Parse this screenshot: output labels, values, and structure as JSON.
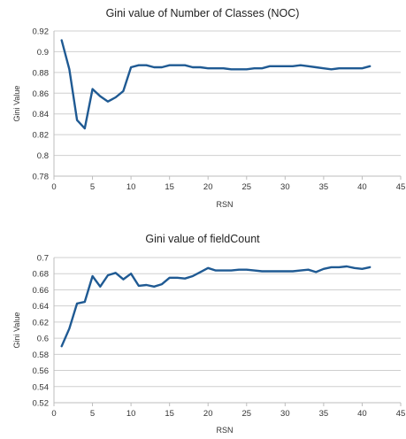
{
  "chart_data": [
    {
      "type": "line",
      "title": "Gini value of Number of Classes (NOC)",
      "xlabel": "RSN",
      "ylabel": "Gini Value",
      "xlim": [
        0,
        45
      ],
      "ylim": [
        0.78,
        0.92
      ],
      "xticks": [
        0,
        5,
        10,
        15,
        20,
        25,
        30,
        35,
        40,
        45
      ],
      "yticks": [
        0.78,
        0.8,
        0.82,
        0.84,
        0.86,
        0.88,
        0.9,
        0.92
      ],
      "grid": true,
      "color": "#1f5a93",
      "series": [
        {
          "x": [
            1,
            2,
            3,
            4,
            5,
            6,
            7,
            8,
            9,
            10,
            11,
            12,
            13,
            14,
            15,
            16,
            17,
            18,
            19,
            20,
            21,
            22,
            23,
            24,
            25,
            26,
            27,
            28,
            29,
            30,
            31,
            32,
            33,
            34,
            35,
            36,
            37,
            38,
            39,
            40,
            41
          ],
          "y": [
            0.911,
            0.883,
            0.834,
            0.826,
            0.864,
            0.857,
            0.852,
            0.856,
            0.862,
            0.885,
            0.887,
            0.887,
            0.885,
            0.885,
            0.887,
            0.887,
            0.887,
            0.885,
            0.885,
            0.884,
            0.884,
            0.884,
            0.883,
            0.883,
            0.883,
            0.884,
            0.884,
            0.886,
            0.886,
            0.886,
            0.886,
            0.887,
            0.886,
            0.885,
            0.884,
            0.883,
            0.884,
            0.884,
            0.884,
            0.884,
            0.886
          ]
        }
      ]
    },
    {
      "type": "line",
      "title": "Gini value of fieldCount",
      "xlabel": "RSN",
      "ylabel": "Gini Value",
      "xlim": [
        0,
        45
      ],
      "ylim": [
        0.52,
        0.7
      ],
      "xticks": [
        0,
        5,
        10,
        15,
        20,
        25,
        30,
        35,
        40,
        45
      ],
      "yticks": [
        0.52,
        0.54,
        0.56,
        0.58,
        0.6,
        0.62,
        0.64,
        0.66,
        0.68,
        0.7
      ],
      "grid": true,
      "color": "#1f5a93",
      "series": [
        {
          "x": [
            1,
            2,
            3,
            4,
            5,
            6,
            7,
            8,
            9,
            10,
            11,
            12,
            13,
            14,
            15,
            16,
            17,
            18,
            19,
            20,
            21,
            22,
            23,
            24,
            25,
            26,
            27,
            28,
            29,
            30,
            31,
            32,
            33,
            34,
            35,
            36,
            37,
            38,
            39,
            40,
            41
          ],
          "y": [
            0.59,
            0.612,
            0.643,
            0.645,
            0.677,
            0.664,
            0.678,
            0.681,
            0.673,
            0.68,
            0.665,
            0.666,
            0.664,
            0.667,
            0.675,
            0.675,
            0.674,
            0.677,
            0.682,
            0.687,
            0.684,
            0.684,
            0.684,
            0.685,
            0.685,
            0.684,
            0.683,
            0.683,
            0.683,
            0.683,
            0.683,
            0.684,
            0.685,
            0.682,
            0.686,
            0.688,
            0.688,
            0.689,
            0.687,
            0.686,
            0.688
          ]
        }
      ]
    }
  ]
}
